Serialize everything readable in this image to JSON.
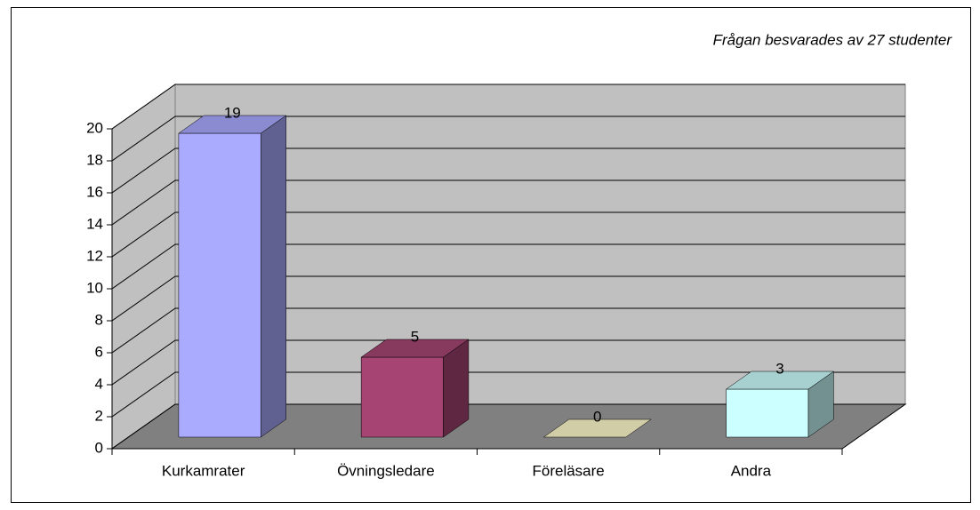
{
  "chart_data": {
    "type": "bar3d",
    "title": "Frågan besvarades av 27 studenter",
    "categories": [
      "Kurkamrater",
      "Övningsledare",
      "Föreläsare",
      "Andra"
    ],
    "values": [
      19,
      5,
      0,
      3
    ],
    "colors": [
      "#aaaaff",
      "#a64573",
      "#fffacc",
      "#ccffff"
    ],
    "ylim": [
      0,
      20
    ],
    "yticks": [
      0,
      2,
      4,
      6,
      8,
      10,
      12,
      14,
      16,
      18,
      20
    ],
    "grid": true
  }
}
